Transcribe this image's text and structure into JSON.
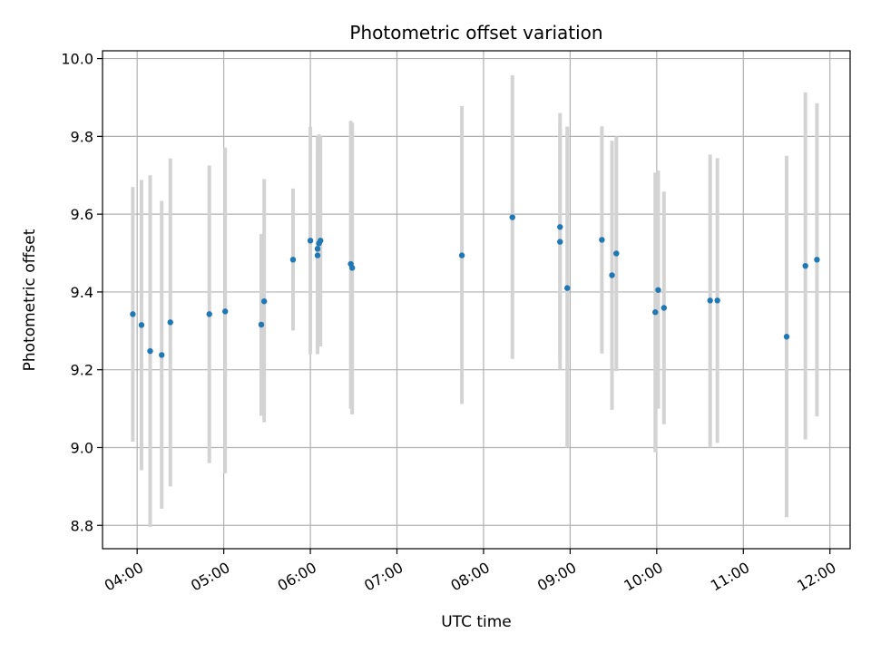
{
  "chart_data": {
    "type": "scatter",
    "title": "Photometric offset variation",
    "xlabel": "UTC time",
    "ylabel": "Photometric offset",
    "x_tick_labels": [
      "04:00",
      "05:00",
      "06:00",
      "07:00",
      "08:00",
      "09:00",
      "10:00",
      "11:00",
      "12:00"
    ],
    "y_ticks": [
      8.8,
      9.0,
      9.2,
      9.4,
      9.6,
      9.8,
      10.0
    ],
    "xlim": [
      "03:36",
      "12:14"
    ],
    "ylim": [
      8.74,
      10.02
    ],
    "grid": true,
    "colors": {
      "point": "#1f77b4",
      "errorbar": "#d3d3d3",
      "grid": "#b0b0b0"
    },
    "points": [
      {
        "x": "03:57",
        "y": 9.343,
        "lo": 9.015,
        "hi": 9.67
      },
      {
        "x": "04:03",
        "y": 9.315,
        "lo": 8.942,
        "hi": 9.688
      },
      {
        "x": "04:09",
        "y": 9.248,
        "lo": 8.796,
        "hi": 9.7
      },
      {
        "x": "04:17",
        "y": 9.238,
        "lo": 8.843,
        "hi": 9.634
      },
      {
        "x": "04:23",
        "y": 9.322,
        "lo": 8.9,
        "hi": 9.743
      },
      {
        "x": "04:50",
        "y": 9.343,
        "lo": 8.96,
        "hi": 9.725
      },
      {
        "x": "05:01",
        "y": 9.35,
        "lo": 8.934,
        "hi": 9.771
      },
      {
        "x": "05:26",
        "y": 9.316,
        "lo": 9.082,
        "hi": 9.549
      },
      {
        "x": "05:28",
        "y": 9.376,
        "lo": 9.065,
        "hi": 9.69
      },
      {
        "x": "05:48",
        "y": 9.483,
        "lo": 9.301,
        "hi": 9.666
      },
      {
        "x": "06:00",
        "y": 9.532,
        "lo": 9.24,
        "hi": 9.825
      },
      {
        "x": "06:05",
        "y": 9.494,
        "lo": 9.24,
        "hi": 9.75
      },
      {
        "x": "06:05",
        "y": 9.511,
        "lo": 9.25,
        "hi": 9.8
      },
      {
        "x": "06:06",
        "y": 9.525,
        "lo": 9.265,
        "hi": 9.805
      },
      {
        "x": "06:07",
        "y": 9.532,
        "lo": 9.26,
        "hi": 9.8
      },
      {
        "x": "06:28",
        "y": 9.472,
        "lo": 9.1,
        "hi": 9.84
      },
      {
        "x": "06:29",
        "y": 9.462,
        "lo": 9.085,
        "hi": 9.835
      },
      {
        "x": "07:45",
        "y": 9.494,
        "lo": 9.112,
        "hi": 9.878
      },
      {
        "x": "08:20",
        "y": 9.592,
        "lo": 9.228,
        "hi": 9.957
      },
      {
        "x": "08:53",
        "y": 9.567,
        "lo": 9.2,
        "hi": 9.86
      },
      {
        "x": "08:53",
        "y": 9.529,
        "lo": 9.23,
        "hi": 9.83
      },
      {
        "x": "08:58",
        "y": 9.41,
        "lo": 9.0,
        "hi": 9.825
      },
      {
        "x": "09:22",
        "y": 9.534,
        "lo": 9.242,
        "hi": 9.826
      },
      {
        "x": "09:29",
        "y": 9.443,
        "lo": 9.097,
        "hi": 9.789
      },
      {
        "x": "09:32",
        "y": 9.499,
        "lo": 9.197,
        "hi": 9.8
      },
      {
        "x": "09:59",
        "y": 9.348,
        "lo": 8.988,
        "hi": 9.707
      },
      {
        "x": "10:01",
        "y": 9.405,
        "lo": 9.1,
        "hi": 9.712
      },
      {
        "x": "10:05",
        "y": 9.359,
        "lo": 9.06,
        "hi": 9.658
      },
      {
        "x": "10:37",
        "y": 9.378,
        "lo": 9.0,
        "hi": 9.753
      },
      {
        "x": "10:42",
        "y": 9.378,
        "lo": 9.012,
        "hi": 9.744
      },
      {
        "x": "11:30",
        "y": 9.285,
        "lo": 8.821,
        "hi": 9.75
      },
      {
        "x": "11:43",
        "y": 9.467,
        "lo": 9.021,
        "hi": 9.913
      },
      {
        "x": "11:51",
        "y": 9.483,
        "lo": 9.08,
        "hi": 9.885
      }
    ]
  }
}
